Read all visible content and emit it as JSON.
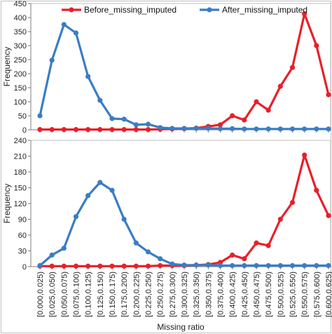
{
  "chart_data": [
    {
      "type": "line",
      "ylabel": "Frequency",
      "xlabel": "",
      "ylim": [
        0,
        450
      ],
      "yticks": [
        0,
        50,
        100,
        150,
        200,
        250,
        300,
        350,
        400,
        450
      ],
      "legend": "top",
      "grid": false,
      "categories": [
        "[0.000,0.025)",
        "[0.025,0.050)",
        "[0.050,0.075)",
        "[0.075,0.100)",
        "[0.100,0.125)",
        "[0.125,0.150)",
        "[0.150,0.175)",
        "[0.175,0.200)",
        "[0.200,0.225)",
        "[0.225,0.250)",
        "[0.250,0.275)",
        "[0.275,0.300)",
        "[0.300,0.325)",
        "[0.325,0.350)",
        "[0.350,0.375)",
        "[0.375,0.400)",
        "[0.400,0.425)",
        "[0.425,0.450)",
        "[0.450,0.475)",
        "[0.475,0.500)",
        "[0.500,0.525)",
        "[0.525,0.550)",
        "[0.550,0.575)",
        "[0.575,0.600)",
        "[0.600,0.625)"
      ],
      "series": [
        {
          "name": "Before_missing_imputed",
          "color": "#e8202a",
          "values": [
            1,
            1,
            1,
            1,
            1,
            1,
            1,
            1,
            1,
            1,
            2,
            3,
            4,
            6,
            12,
            18,
            50,
            35,
            100,
            70,
            155,
            222,
            413,
            300,
            125
          ]
        },
        {
          "name": "After_missing_imputed",
          "color": "#3a7dc4",
          "values": [
            50,
            248,
            375,
            345,
            190,
            105,
            40,
            38,
            18,
            20,
            8,
            5,
            5,
            5,
            5,
            4,
            4,
            3,
            3,
            3,
            3,
            3,
            3,
            3,
            3
          ]
        }
      ]
    },
    {
      "type": "line",
      "ylabel": "Frequency",
      "xlabel": "Missing ratio",
      "ylim": [
        0,
        240
      ],
      "yticks": [
        0,
        30,
        60,
        90,
        120,
        150,
        180,
        210,
        240
      ],
      "grid": false,
      "categories": [
        "[0.000,0.025)",
        "[0.025,0.050)",
        "[0.050,0.075)",
        "[0.075,0.100)",
        "[0.100,0.125)",
        "[0.125,0.150)",
        "[0.150,0.175)",
        "[0.175,0.200)",
        "[0.200,0.225)",
        "[0.225,0.250)",
        "[0.250,0.275)",
        "[0.275,0.300)",
        "[0.300,0.325)",
        "[0.325,0.350)",
        "[0.350,0.375)",
        "[0.375,0.400)",
        "[0.400,0.425)",
        "[0.425,0.450)",
        "[0.450,0.475)",
        "[0.475,0.500)",
        "[0.500,0.525)",
        "[0.525,0.550)",
        "[0.550,0.575)",
        "[0.575,0.600)",
        "[0.600,0.625)"
      ],
      "series": [
        {
          "name": "Before_missing_imputed",
          "color": "#e8202a",
          "values": [
            1,
            1,
            1,
            1,
            1,
            1,
            1,
            1,
            1,
            1,
            2,
            2,
            2,
            3,
            4,
            8,
            22,
            15,
            45,
            40,
            90,
            122,
            212,
            145,
            97
          ]
        },
        {
          "name": "After_missing_imputed",
          "color": "#3a7dc4",
          "values": [
            2,
            22,
            35,
            95,
            135,
            160,
            145,
            90,
            45,
            28,
            15,
            5,
            3,
            3,
            3,
            2,
            2,
            2,
            2,
            2,
            2,
            2,
            2,
            2,
            2
          ]
        }
      ]
    }
  ]
}
